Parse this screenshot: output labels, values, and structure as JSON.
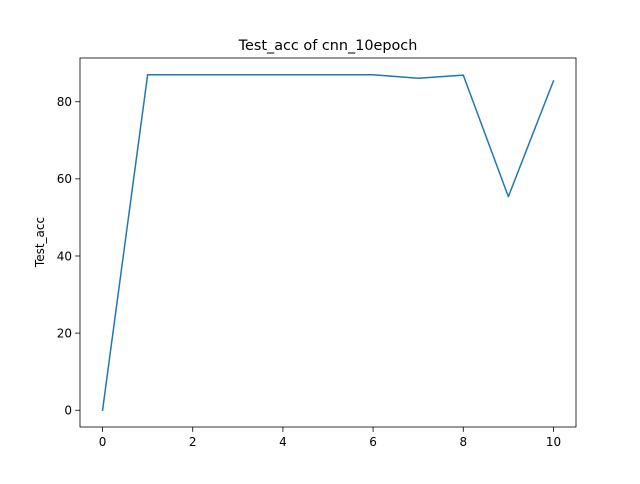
{
  "chart_data": {
    "type": "line",
    "title": "Test_acc of cnn_10epoch",
    "xlabel": "",
    "ylabel": "Test_acc",
    "xlim": [
      -0.5,
      10.5
    ],
    "ylim": [
      -4.35,
      91.35
    ],
    "x_ticks": [
      0,
      2,
      4,
      6,
      8,
      10
    ],
    "y_ticks": [
      0,
      20,
      40,
      60,
      80
    ],
    "grid": false,
    "legend": "none",
    "series": [
      {
        "color": "#1f77b4",
        "x": [
          0,
          1,
          2,
          3,
          4,
          5,
          6,
          7,
          8,
          9,
          10
        ],
        "y": [
          0,
          87,
          87,
          87,
          87,
          87,
          87,
          86.1,
          86.9,
          55.4,
          85.4
        ]
      }
    ]
  }
}
